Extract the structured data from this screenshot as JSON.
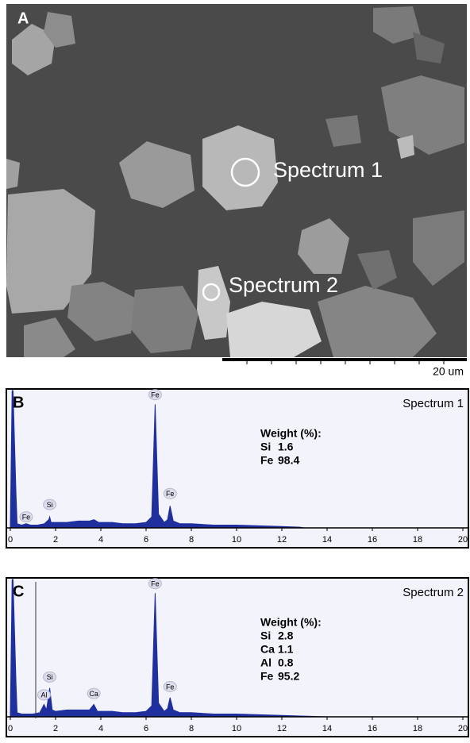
{
  "image_panel": {
    "label": "A",
    "spectrum_labels": [
      "Spectrum 1",
      "Spectrum 2"
    ],
    "scale_bar": "20 um"
  },
  "chart_data": [
    {
      "type": "area",
      "panel_label": "B",
      "title": "Spectrum 1",
      "color": "#1f2f9e",
      "x": [
        0,
        0.08,
        0.12,
        0.25,
        0.3,
        0.5,
        0.7,
        0.9,
        1.2,
        1.5,
        1.7,
        1.74,
        1.8,
        2.0,
        2.5,
        3.0,
        3.5,
        3.7,
        3.9,
        4.5,
        5.0,
        5.5,
        6.0,
        6.25,
        6.4,
        6.55,
        6.8,
        6.95,
        7.06,
        7.2,
        7.5,
        8.0,
        9.0,
        10.0,
        11.0,
        12.0,
        12.8,
        13.0,
        20
      ],
      "values": [
        0,
        100,
        100,
        25,
        3,
        2,
        3,
        2,
        2,
        3,
        6,
        8,
        4,
        4,
        4,
        5,
        5,
        6,
        4,
        4,
        3,
        3,
        4,
        8,
        90,
        10,
        4,
        6,
        16,
        5,
        3,
        3,
        2,
        2,
        1.5,
        1,
        0.5,
        0,
        0
      ],
      "xlim": [
        0,
        20
      ],
      "xticks": [
        0,
        2,
        4,
        6,
        8,
        10,
        12,
        14,
        16,
        18,
        20
      ],
      "ylim": [
        0,
        100
      ],
      "annotations": [
        {
          "text": "Fe",
          "x": 0.7,
          "y": 8
        },
        {
          "text": "Si",
          "x": 1.74,
          "y": 17
        },
        {
          "text": "Fe",
          "x": 6.4,
          "y": 97
        },
        {
          "text": "Fe",
          "x": 7.06,
          "y": 25
        }
      ],
      "weights_title": "Weight (%):",
      "weights": [
        {
          "element": "Si",
          "value": 1.6
        },
        {
          "element": "Fe",
          "value": 98.4
        }
      ]
    },
    {
      "type": "area",
      "panel_label": "C",
      "title": "Spectrum 2",
      "color": "#1f2f9e",
      "x": [
        0,
        0.08,
        0.12,
        0.25,
        0.3,
        0.5,
        0.7,
        1.0,
        1.3,
        1.49,
        1.6,
        1.74,
        1.85,
        2.0,
        2.5,
        3.0,
        3.5,
        3.69,
        3.85,
        4.5,
        5.0,
        5.5,
        6.0,
        6.25,
        6.4,
        6.55,
        6.8,
        6.95,
        7.06,
        7.2,
        7.5,
        8.0,
        9.0,
        10.0,
        11.0,
        12.0,
        13.0,
        14.0,
        20
      ],
      "values": [
        0,
        100,
        100,
        25,
        3,
        2,
        2,
        2,
        3,
        9,
        5,
        21,
        5,
        4,
        5,
        5,
        5,
        9,
        4,
        4,
        3,
        3,
        4,
        8,
        90,
        10,
        4,
        6,
        14,
        5,
        3,
        3,
        2,
        2,
        1.5,
        1,
        0.5,
        0,
        0
      ],
      "xlim": [
        0,
        20
      ],
      "xticks": [
        0,
        2,
        4,
        6,
        8,
        10,
        12,
        14,
        16,
        18,
        20
      ],
      "ylim": [
        0,
        100
      ],
      "annotations": [
        {
          "text": "Al",
          "x": 1.49,
          "y": 16
        },
        {
          "text": "Si",
          "x": 1.74,
          "y": 29
        },
        {
          "text": "Ca",
          "x": 3.69,
          "y": 17
        },
        {
          "text": "Fe",
          "x": 6.4,
          "y": 97
        },
        {
          "text": "Fe",
          "x": 7.06,
          "y": 22
        }
      ],
      "weights_title": "Weight (%):",
      "weights": [
        {
          "element": "Si",
          "value": 2.8
        },
        {
          "element": "Ca",
          "value": 1.1
        },
        {
          "element": "Al",
          "value": 0.8
        },
        {
          "element": "Fe",
          "value": 95.2
        }
      ]
    }
  ]
}
